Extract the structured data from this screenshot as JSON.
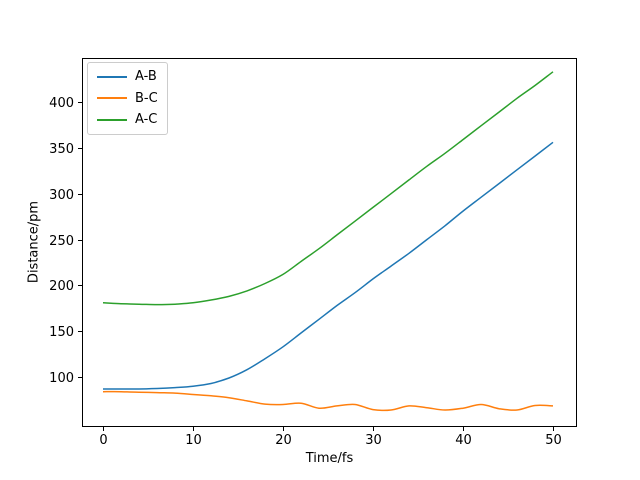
{
  "figure": {
    "background": "#ffffff",
    "axis_color": "#000000",
    "legend_border_color": "#cccccc"
  },
  "chart_data": {
    "type": "line",
    "title": "",
    "xlabel": "Time/fs",
    "ylabel": "Distance/pm",
    "xticks": [
      0,
      10,
      20,
      30,
      40,
      50
    ],
    "yticks": [
      100,
      150,
      200,
      250,
      300,
      350,
      400
    ],
    "xlim": [
      -2.33,
      52.67
    ],
    "ylim": [
      45.5,
      448
    ],
    "grid": false,
    "legend": {
      "position": "upper left"
    },
    "x": [
      0,
      2,
      4,
      6,
      8,
      10,
      12,
      14,
      16,
      18,
      20,
      22,
      24,
      26,
      28,
      30,
      32,
      34,
      36,
      38,
      40,
      42,
      44,
      46,
      48,
      50
    ],
    "series": [
      {
        "name": "A-B",
        "color": "#1f77b4",
        "values": [
          87,
          87,
          87,
          87.5,
          88.5,
          90,
          93,
          99,
          108,
          120,
          133,
          148,
          163,
          178,
          192,
          207,
          221,
          235,
          250,
          265,
          281,
          296,
          311,
          326,
          341,
          356
        ]
      },
      {
        "name": "B-C",
        "color": "#ff7f0e",
        "values": [
          84,
          84,
          83.5,
          83,
          82.5,
          81,
          79.5,
          77.5,
          74,
          70.5,
          70,
          71.5,
          66,
          68.5,
          70,
          64.5,
          64,
          68.5,
          66.5,
          64,
          66,
          70,
          65.5,
          64,
          69,
          68.5
        ]
      },
      {
        "name": "A-C",
        "color": "#2ca02c",
        "values": [
          181,
          180,
          179.5,
          179,
          179.5,
          181,
          184,
          188,
          194,
          202,
          212,
          226,
          240,
          255,
          270,
          285,
          300,
          315,
          330,
          344,
          359,
          374,
          389,
          404,
          418,
          433
        ]
      }
    ]
  }
}
